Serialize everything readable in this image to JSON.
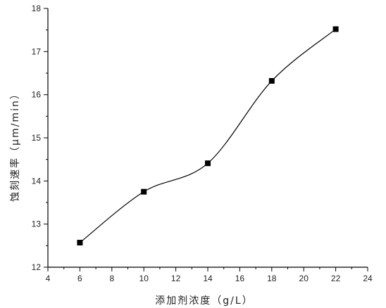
{
  "chart_data": {
    "type": "line",
    "title": "",
    "xlabel": "添加剂浓度（g/L）",
    "ylabel": "蚀刻速率（μm/min）",
    "xlim": [
      4,
      24
    ],
    "ylim": [
      12,
      18
    ],
    "xticks": [
      4,
      6,
      8,
      10,
      12,
      14,
      16,
      18,
      20,
      22,
      24
    ],
    "yticks": [
      12,
      13,
      14,
      15,
      16,
      17,
      18
    ],
    "grid": false,
    "legend": "none",
    "series": [
      {
        "marker": "square",
        "smooth": true,
        "color": "#000000",
        "x": [
          6,
          10,
          14,
          18,
          22
        ],
        "y": [
          12.57,
          13.75,
          14.41,
          16.32,
          17.52
        ]
      }
    ]
  }
}
